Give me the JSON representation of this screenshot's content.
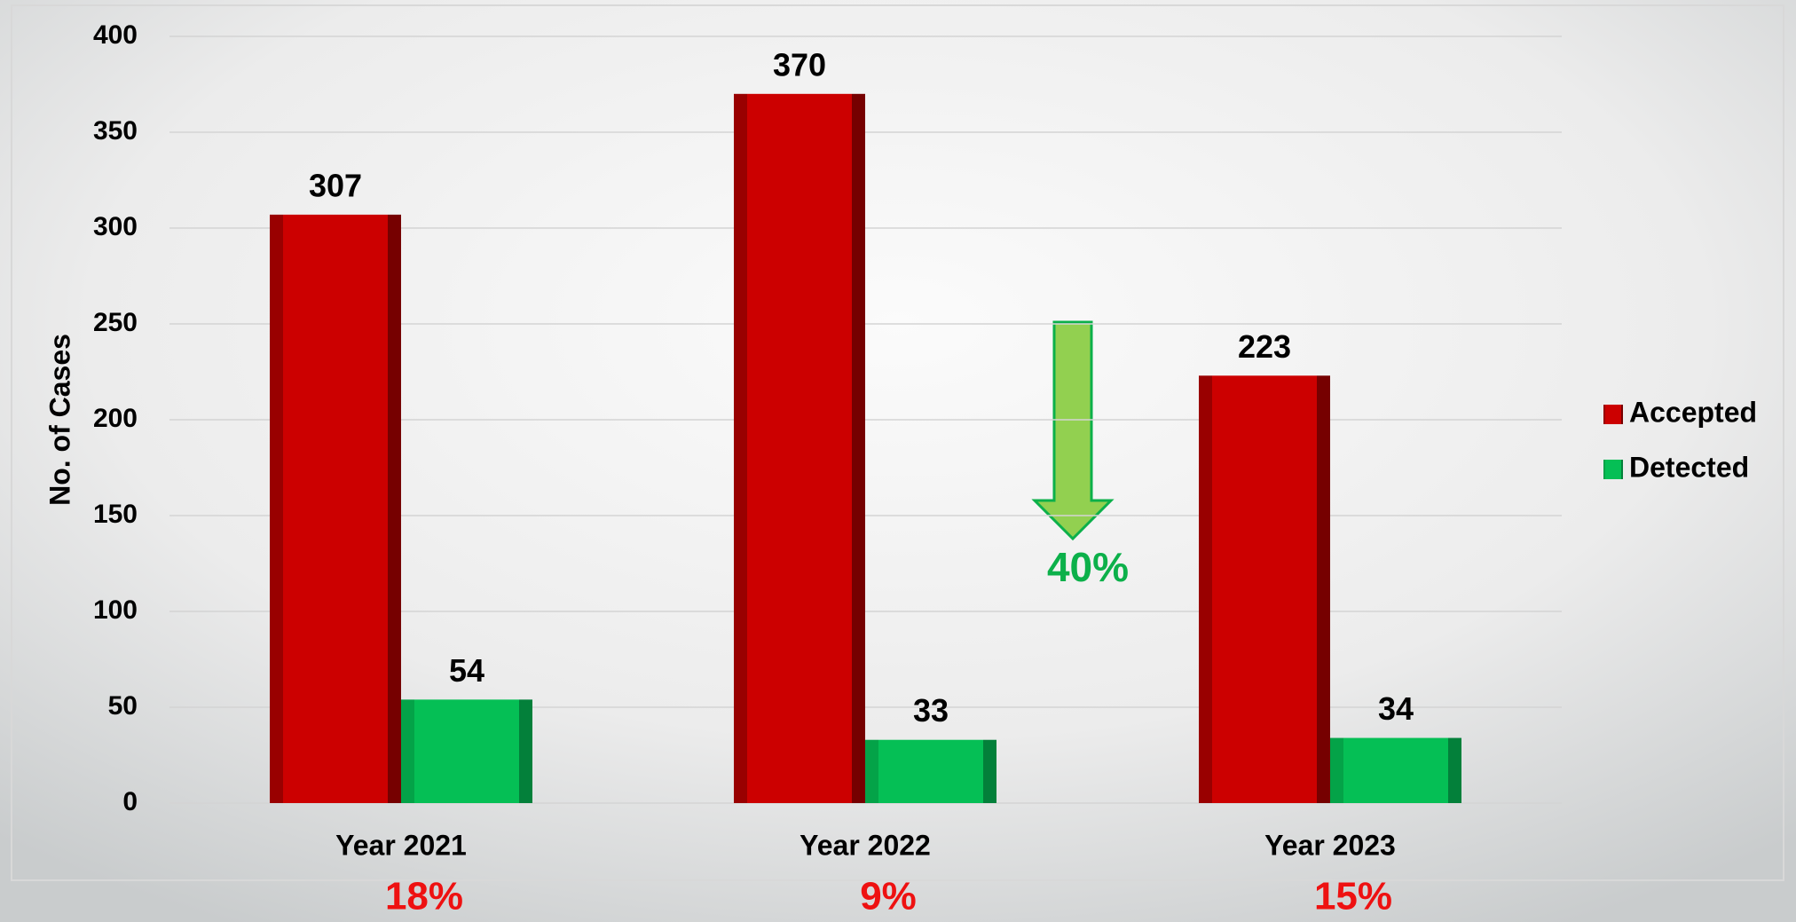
{
  "chart_data": {
    "type": "bar",
    "y_label": "No. of Cases",
    "categories": [
      "Year 2021",
      "Year 2022",
      "Year 2023"
    ],
    "series": [
      {
        "name": "Accepted",
        "color": "#cc0000",
        "values": [
          307,
          370,
          223
        ]
      },
      {
        "name": "Detected",
        "color": "#05bf55",
        "values": [
          54,
          33,
          34
        ]
      }
    ],
    "ylim": [
      0,
      400
    ],
    "yticks": [
      0,
      50,
      100,
      150,
      200,
      250,
      300,
      350,
      400
    ],
    "grid": true,
    "legend": "right",
    "category_annotations": [
      "18%",
      "9%",
      "15%"
    ],
    "change_annotation": "40%"
  }
}
